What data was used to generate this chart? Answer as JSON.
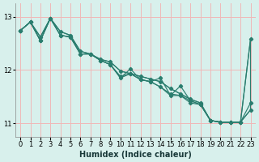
{
  "xlabel": "Humidex (Indice chaleur)",
  "bg_color": "#d8f0ec",
  "grid_color": "#f0b8b8",
  "line_color": "#2a7d6e",
  "fill_color": "#d8f0ec",
  "xlim": [
    -0.5,
    23.5
  ],
  "ylim": [
    10.75,
    13.25
  ],
  "yticks": [
    11,
    12,
    13
  ],
  "xticks": [
    0,
    1,
    2,
    3,
    4,
    5,
    6,
    7,
    8,
    9,
    10,
    11,
    12,
    13,
    14,
    15,
    16,
    17,
    18,
    19,
    20,
    21,
    22,
    23
  ],
  "series1_x": [
    0,
    1,
    2,
    3,
    4,
    5,
    6,
    7,
    8,
    9,
    10,
    11,
    12,
    13,
    14,
    15,
    16,
    17,
    18,
    19,
    20,
    21,
    22,
    23
  ],
  "series1_y": [
    12.74,
    12.9,
    12.62,
    12.97,
    12.72,
    12.65,
    12.35,
    12.3,
    12.2,
    12.15,
    11.98,
    11.93,
    11.88,
    11.83,
    11.78,
    11.65,
    11.55,
    11.45,
    11.38,
    11.05,
    11.02,
    11.02,
    11.02,
    12.58
  ],
  "series2_x": [
    0,
    1,
    2,
    3,
    4,
    5,
    6,
    7,
    8,
    9,
    10,
    11,
    12,
    13,
    14,
    15,
    16,
    17,
    18,
    19,
    20,
    21,
    22,
    23
  ],
  "series2_y": [
    12.74,
    12.9,
    12.55,
    12.97,
    12.65,
    12.62,
    12.3,
    12.3,
    12.18,
    12.1,
    11.88,
    11.93,
    11.82,
    11.78,
    11.68,
    11.55,
    11.52,
    11.38,
    11.35,
    11.05,
    11.02,
    11.02,
    11.02,
    11.38
  ],
  "series3_x": [
    0,
    1,
    2,
    3,
    4,
    5,
    6,
    7,
    8,
    9,
    10,
    11,
    12,
    13,
    14,
    15,
    16,
    17,
    18,
    19,
    20,
    21,
    22,
    23
  ],
  "series3_y": [
    12.74,
    12.9,
    12.55,
    12.97,
    12.65,
    12.62,
    12.3,
    12.3,
    12.18,
    12.1,
    11.85,
    12.02,
    11.82,
    11.78,
    11.85,
    11.52,
    11.7,
    11.42,
    11.35,
    11.05,
    11.02,
    11.02,
    11.02,
    11.25
  ],
  "poly_upper_x": [
    0,
    1,
    2,
    3,
    4,
    5,
    6,
    7,
    8,
    9,
    10,
    11,
    12,
    13,
    14,
    15,
    16,
    17,
    18,
    19,
    20,
    21,
    22,
    23
  ],
  "poly_upper_y": [
    12.74,
    12.9,
    12.62,
    12.97,
    12.72,
    12.65,
    12.35,
    12.3,
    12.2,
    12.15,
    11.98,
    11.93,
    11.88,
    11.83,
    11.78,
    11.65,
    11.55,
    11.45,
    11.38,
    11.05,
    11.02,
    11.02,
    11.02,
    12.58
  ],
  "poly_lower_x": [
    23,
    22,
    21,
    20,
    19,
    18,
    17,
    16,
    15,
    14,
    13,
    12,
    11,
    10,
    9,
    8,
    7,
    6,
    5,
    4,
    3,
    2,
    1,
    0
  ],
  "poly_lower_y": [
    11.25,
    11.02,
    11.02,
    11.02,
    11.05,
    11.35,
    11.42,
    11.52,
    11.52,
    11.68,
    11.78,
    11.82,
    11.93,
    11.85,
    12.1,
    12.18,
    12.3,
    12.3,
    12.62,
    12.65,
    12.97,
    12.55,
    12.9,
    12.74
  ]
}
